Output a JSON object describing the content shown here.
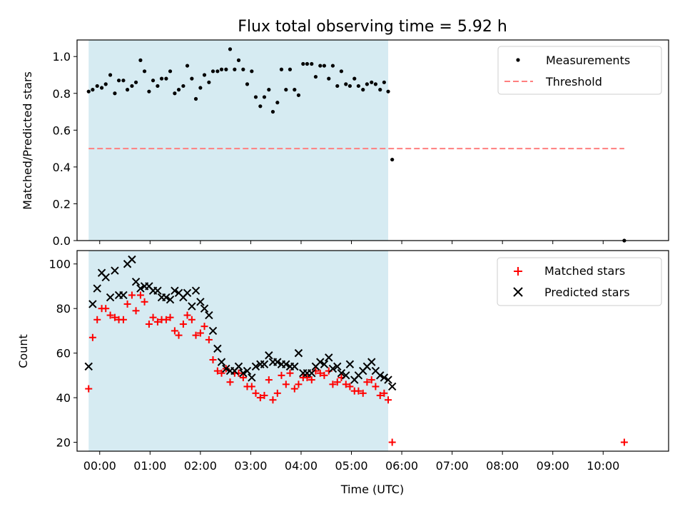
{
  "chart_data": [
    {
      "type": "scatter",
      "title": "Flux total observing time = 5.92 h",
      "ylabel": "Matched/Predicted stars",
      "xlabel": "",
      "xlim": [
        -0.45,
        11.3
      ],
      "ylim": [
        0.0,
        1.09
      ],
      "yticks": [
        "0.0",
        "0.2",
        "0.4",
        "0.6",
        "0.8",
        "1.0"
      ],
      "observing_window_hours": [
        -0.22,
        5.73
      ],
      "shade_color": "#add8e6",
      "legend": "top-right",
      "series": [
        {
          "name": "Measurements",
          "color": "#000000",
          "marker": "dot",
          "x": [
            -0.22,
            -0.14,
            -0.05,
            0.04,
            0.12,
            0.21,
            0.3,
            0.38,
            0.47,
            0.55,
            0.64,
            0.72,
            0.81,
            0.89,
            0.98,
            1.06,
            1.15,
            1.23,
            1.32,
            1.4,
            1.49,
            1.57,
            1.66,
            1.74,
            1.83,
            1.91,
            2.0,
            2.08,
            2.17,
            2.25,
            2.34,
            2.42,
            2.51,
            2.59,
            2.68,
            2.76,
            2.85,
            2.93,
            3.02,
            3.1,
            3.19,
            3.27,
            3.36,
            3.44,
            3.53,
            3.61,
            3.7,
            3.78,
            3.87,
            3.95,
            4.04,
            4.12,
            4.21,
            4.29,
            4.38,
            4.46,
            4.55,
            4.63,
            4.72,
            4.8,
            4.89,
            4.97,
            5.06,
            5.14,
            5.23,
            5.31,
            5.4,
            5.48,
            5.57,
            5.65,
            5.73,
            5.81,
            10.42
          ],
          "y": [
            0.81,
            0.82,
            0.84,
            0.83,
            0.85,
            0.9,
            0.8,
            0.87,
            0.87,
            0.82,
            0.84,
            0.86,
            0.98,
            0.92,
            0.81,
            0.87,
            0.84,
            0.88,
            0.88,
            0.92,
            0.8,
            0.82,
            0.84,
            0.95,
            0.88,
            0.77,
            0.83,
            0.9,
            0.86,
            0.92,
            0.92,
            0.93,
            0.93,
            1.04,
            0.93,
            0.98,
            0.93,
            0.85,
            0.92,
            0.78,
            0.73,
            0.78,
            0.82,
            0.7,
            0.75,
            0.93,
            0.82,
            0.93,
            0.82,
            0.79,
            0.96,
            0.96,
            0.96,
            0.89,
            0.95,
            0.95,
            0.88,
            0.95,
            0.84,
            0.92,
            0.85,
            0.84,
            0.88,
            0.84,
            0.82,
            0.85,
            0.86,
            0.85,
            0.82,
            0.86,
            0.81,
            0.44,
            0.0
          ]
        },
        {
          "name": "Threshold",
          "color": "#ff7f7f",
          "style": "dashed",
          "x": [
            -0.22,
            10.42
          ],
          "y": [
            0.5,
            0.5
          ]
        }
      ]
    },
    {
      "type": "scatter",
      "title": "",
      "ylabel": "Count",
      "xlabel": "Time (UTC)",
      "xlim": [
        -0.45,
        11.3
      ],
      "ylim": [
        16,
        106
      ],
      "yticks": [
        "20",
        "40",
        "60",
        "80",
        "100"
      ],
      "xtick_values": [
        0,
        1,
        2,
        3,
        4,
        5,
        6,
        7,
        8,
        9,
        10
      ],
      "xtick_labels": [
        "00:00",
        "01:00",
        "02:00",
        "03:00",
        "04:00",
        "05:00",
        "06:00",
        "07:00",
        "08:00",
        "09:00",
        "10:00"
      ],
      "observing_window_hours": [
        -0.22,
        5.73
      ],
      "shade_color": "#add8e6",
      "legend": "top-right",
      "series": [
        {
          "name": "Matched stars",
          "color": "#ff0000",
          "marker": "plus",
          "x": [
            -0.22,
            -0.14,
            -0.05,
            0.04,
            0.12,
            0.21,
            0.3,
            0.38,
            0.47,
            0.55,
            0.64,
            0.72,
            0.81,
            0.89,
            0.98,
            1.06,
            1.15,
            1.23,
            1.32,
            1.4,
            1.49,
            1.57,
            1.66,
            1.74,
            1.83,
            1.91,
            2.0,
            2.08,
            2.17,
            2.25,
            2.34,
            2.42,
            2.51,
            2.59,
            2.68,
            2.76,
            2.85,
            2.93,
            3.02,
            3.1,
            3.19,
            3.27,
            3.36,
            3.44,
            3.53,
            3.61,
            3.7,
            3.78,
            3.87,
            3.95,
            4.04,
            4.12,
            4.21,
            4.29,
            4.38,
            4.46,
            4.55,
            4.63,
            4.72,
            4.8,
            4.89,
            4.97,
            5.06,
            5.14,
            5.23,
            5.31,
            5.4,
            5.48,
            5.57,
            5.65,
            5.73,
            5.81,
            10.42
          ],
          "y": [
            44,
            67,
            75,
            80,
            80,
            77,
            76,
            75,
            75,
            82,
            86,
            79,
            86,
            83,
            73,
            76,
            74,
            75,
            75,
            76,
            70,
            68,
            73,
            77,
            75,
            68,
            69,
            72,
            66,
            57,
            52,
            51,
            53,
            47,
            51,
            51,
            49,
            45,
            45,
            42,
            40,
            41,
            48,
            39,
            42,
            50,
            46,
            51,
            44,
            46,
            49,
            49,
            48,
            52,
            51,
            50,
            52,
            46,
            47,
            49,
            46,
            45,
            43,
            43,
            42,
            47,
            48,
            45,
            41,
            42,
            39,
            20,
            20
          ]
        },
        {
          "name": "Predicted stars",
          "color": "#000000",
          "marker": "x",
          "x": [
            -0.22,
            -0.14,
            -0.05,
            0.04,
            0.12,
            0.21,
            0.3,
            0.38,
            0.47,
            0.55,
            0.64,
            0.72,
            0.81,
            0.89,
            0.98,
            1.06,
            1.15,
            1.23,
            1.32,
            1.4,
            1.49,
            1.57,
            1.66,
            1.74,
            1.83,
            1.91,
            2.0,
            2.08,
            2.17,
            2.25,
            2.34,
            2.42,
            2.51,
            2.59,
            2.68,
            2.76,
            2.85,
            2.93,
            3.02,
            3.1,
            3.19,
            3.27,
            3.36,
            3.44,
            3.53,
            3.61,
            3.7,
            3.78,
            3.87,
            3.95,
            4.04,
            4.12,
            4.21,
            4.29,
            4.38,
            4.46,
            4.55,
            4.63,
            4.72,
            4.8,
            4.89,
            4.97,
            5.06,
            5.14,
            5.23,
            5.31,
            5.4,
            5.48,
            5.57,
            5.65,
            5.73,
            5.81
          ],
          "y": [
            54,
            82,
            89,
            96,
            94,
            85,
            97,
            86,
            86,
            100,
            102,
            92,
            89,
            90,
            90,
            88,
            88,
            85,
            85,
            84,
            88,
            87,
            85,
            87,
            81,
            88,
            83,
            80,
            77,
            70,
            62,
            56,
            53,
            52,
            52,
            54,
            51,
            52,
            49,
            54,
            55,
            55,
            59,
            56,
            56,
            55,
            55,
            54,
            54,
            60,
            51,
            51,
            51,
            54,
            56,
            55,
            58,
            53,
            54,
            51,
            50,
            55,
            48,
            50,
            52,
            54,
            56,
            52,
            50,
            49,
            48,
            45
          ]
        }
      ]
    }
  ]
}
